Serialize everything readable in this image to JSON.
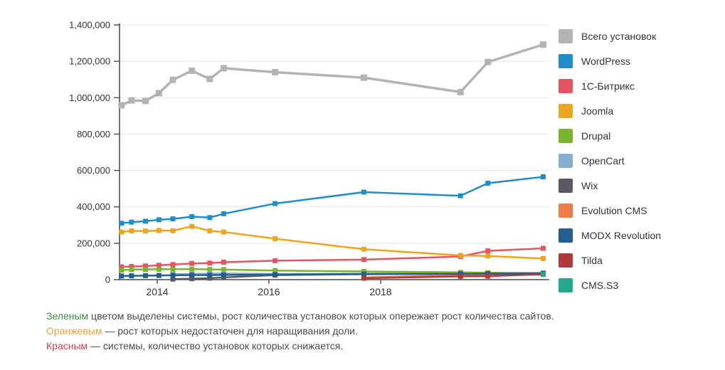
{
  "chart_data": {
    "type": "line",
    "title": "",
    "xlabel": "",
    "ylabel": "",
    "grid": "horizontal",
    "legend_position": "right",
    "ylim": [
      0,
      1400000
    ],
    "yticks": [
      0,
      200000,
      400000,
      600000,
      800000,
      1000000,
      1200000,
      1400000
    ],
    "xticks": [
      2014,
      2016,
      2018
    ],
    "x": [
      2013.36,
      2013.54,
      2013.79,
      2014.03,
      2014.28,
      2014.62,
      2014.94,
      2015.19,
      2016.11,
      2017.7,
      2019.43,
      2019.92,
      2020.91
    ],
    "series": [
      {
        "id": "total",
        "name": "Всего установок",
        "color": "#b3b3b3",
        "values": [
          958000,
          985000,
          982000,
          1025000,
          1098000,
          1148000,
          1103000,
          1162000,
          1140000,
          1110000,
          1031000,
          1196000,
          1292000
        ]
      },
      {
        "id": "wordpress",
        "name": "WordPress",
        "color": "#1f8dc6",
        "values": [
          310000,
          316000,
          321000,
          329000,
          334000,
          346000,
          341000,
          362000,
          418000,
          481000,
          461000,
          530000,
          565000
        ]
      },
      {
        "id": "bitrix",
        "name": "1С-Битрикс",
        "color": "#e85360",
        "values": [
          70000,
          72000,
          75000,
          79000,
          83000,
          89000,
          91000,
          96000,
          104000,
          110000,
          127000,
          158000,
          172000
        ]
      },
      {
        "id": "joomla",
        "name": "Joomla",
        "color": "#eca51e",
        "values": [
          262000,
          268000,
          267000,
          270000,
          269000,
          293000,
          268000,
          262000,
          225000,
          167000,
          133000,
          130000,
          116000
        ]
      },
      {
        "id": "drupal",
        "name": "Drupal",
        "color": "#7ab52c",
        "values": [
          52000,
          55000,
          56000,
          57000,
          57000,
          58000,
          56000,
          55000,
          50000,
          45000,
          40000,
          38000,
          36000
        ]
      },
      {
        "id": "opencart",
        "name": "OpenCart",
        "color": "#85aed1",
        "values": [
          null,
          null,
          null,
          null,
          30000,
          32000,
          33000,
          34000,
          31000,
          33000,
          34000,
          34000,
          37000
        ]
      },
      {
        "id": "wix",
        "name": "Wix",
        "color": "#5f5666",
        "values": [
          null,
          null,
          null,
          null,
          3000,
          5000,
          8000,
          12000,
          25000,
          30000,
          32000,
          33000,
          35000
        ]
      },
      {
        "id": "evolution-cms",
        "name": "Evolution CMS",
        "color": "#ee7c48",
        "values": [
          null,
          null,
          null,
          null,
          null,
          null,
          null,
          null,
          null,
          12000,
          24000,
          26000,
          28000
        ]
      },
      {
        "id": "modx-revolution",
        "name": "MODX Revolution",
        "color": "#235f8e",
        "values": [
          20000,
          21000,
          22000,
          23000,
          24000,
          25000,
          25000,
          26000,
          28000,
          31000,
          32000,
          32000,
          33000
        ]
      },
      {
        "id": "tilda",
        "name": "Tilda",
        "color": "#b03a39",
        "values": [
          null,
          null,
          null,
          null,
          null,
          null,
          null,
          null,
          null,
          8000,
          18000,
          19000,
          30000
        ]
      },
      {
        "id": "cms-s3",
        "name": "CMS.S3",
        "color": "#23a88b",
        "values": [
          null,
          null,
          null,
          null,
          null,
          null,
          null,
          null,
          null,
          null,
          null,
          null,
          30000
        ]
      }
    ]
  },
  "legend": {
    "items": [
      {
        "id": "total",
        "label": "Всего установок",
        "color": "#b3b3b3"
      },
      {
        "id": "wordpress",
        "label": "WordPress",
        "color": "#1f8dc6"
      },
      {
        "id": "bitrix",
        "label": "1С-Битрикс",
        "color": "#e85360"
      },
      {
        "id": "joomla",
        "label": "Joomla",
        "color": "#eca51e"
      },
      {
        "id": "drupal",
        "label": "Drupal",
        "color": "#7ab52c"
      },
      {
        "id": "opencart",
        "label": "OpenCart",
        "color": "#85aed1"
      },
      {
        "id": "wix",
        "label": "Wix",
        "color": "#5f5666"
      },
      {
        "id": "evolution-cms",
        "label": "Evolution CMS",
        "color": "#ee7c48"
      },
      {
        "id": "modx-revolution",
        "label": "MODX Revolution",
        "color": "#235f8e"
      },
      {
        "id": "tilda",
        "label": "Tilda",
        "color": "#b03a39"
      },
      {
        "id": "cms-s3",
        "label": "CMS.S3",
        "color": "#23a88b"
      }
    ]
  },
  "footnotes": {
    "lines": [
      {
        "word": "Зеленым",
        "color": "#3e8e41",
        "text": " цветом выделены системы, рост количества установок которых опережает рост количества сайтов."
      },
      {
        "word": "Оранжевым",
        "color": "#efa03a",
        "text": " — рост которых недостаточен для наращивания доли."
      },
      {
        "word": "Красным",
        "color": "#d5414d",
        "text": " — системы, количество установок которых снижается."
      }
    ]
  }
}
